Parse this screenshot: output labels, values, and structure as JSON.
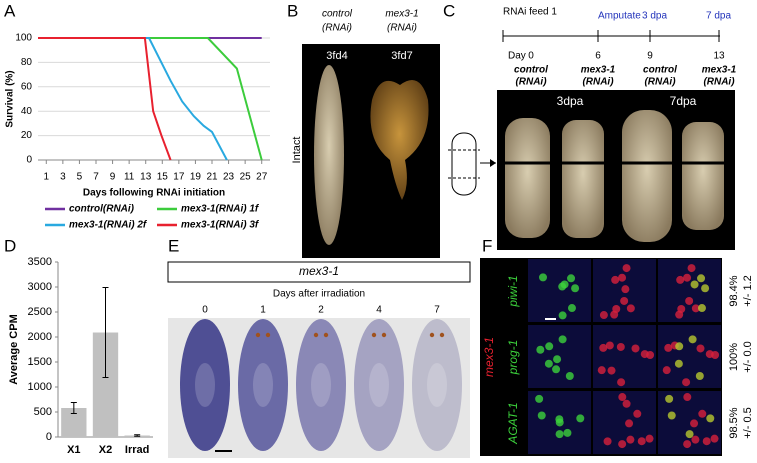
{
  "figure": {
    "panel_labels": [
      "A",
      "B",
      "C",
      "D",
      "E",
      "F"
    ],
    "B": {
      "columns": [
        {
          "condition": "control",
          "rnai": "(RNAi)",
          "stage": "3fd4"
        },
        {
          "condition": "mex3-1",
          "rnai": "(RNAi)",
          "stage": "3fd7"
        }
      ],
      "row_label": "Intact"
    },
    "C": {
      "day_prefix": "Day",
      "timeline": [
        {
          "event": "RNAi feed 1",
          "day": 0,
          "condition": "control",
          "rnai": "(RNAi)"
        },
        {
          "event": "Amputate",
          "day": 6,
          "condition": "mex3-1",
          "rnai": "(RNAi)"
        },
        {
          "event": "3 dpa",
          "day": 9,
          "condition": "control",
          "rnai": "(RNAi)"
        },
        {
          "event": "7 dpa",
          "day": 13,
          "condition": "mex3-1",
          "rnai": "(RNAi)"
        }
      ],
      "image_labels": [
        "3dpa",
        "7dpa"
      ]
    },
    "E": {
      "gene": "mex3-1",
      "axis_title": "Days after irradiation",
      "days": [
        0,
        1,
        2,
        4,
        7
      ]
    },
    "F": {
      "gene": "mex3-1",
      "rows": [
        {
          "marker": "piwi-1",
          "percent": "98.4%",
          "error": "+/- 1.2"
        },
        {
          "marker": "prog-1",
          "percent": "100%",
          "error": "+/- 0.0"
        },
        {
          "marker": "AGAT-1",
          "percent": "98.5%",
          "error": "+/- 0.5"
        }
      ]
    }
  },
  "chart_data": [
    {
      "type": "line",
      "ylabel": "Survival (%)",
      "xlabel": "Days following RNAi initiation",
      "xlim": [
        0,
        28
      ],
      "xticks": [
        1,
        3,
        5,
        7,
        9,
        11,
        13,
        15,
        17,
        19,
        21,
        23,
        25,
        27
      ],
      "ylim": [
        0,
        100
      ],
      "yticks": [
        0,
        20,
        40,
        60,
        80,
        100
      ],
      "grid": true,
      "series": [
        {
          "name": "control(RNAi)",
          "color": "#7030a0",
          "x": [
            0,
            27
          ],
          "values": [
            100,
            100
          ]
        },
        {
          "name": "mex3-1(RNAi) 1f",
          "color": "#3ccc3c",
          "x": [
            0,
            20.5,
            24,
            27
          ],
          "values": [
            100,
            100,
            75,
            0
          ]
        },
        {
          "name": "mex3-1(RNAi) 2f",
          "color": "#29a9e0",
          "x": [
            0,
            13.4,
            16,
            17.4,
            18.8,
            20,
            21,
            22.8
          ],
          "values": [
            100,
            100,
            65,
            48,
            36,
            28,
            23,
            0
          ]
        },
        {
          "name": "mex3-1(RNAi) 3f",
          "color": "#e8212f",
          "x": [
            0,
            12.9,
            13.9,
            14.9,
            16
          ],
          "values": [
            100,
            100,
            40,
            20,
            0
          ]
        }
      ]
    },
    {
      "type": "bar",
      "ylabel": "Average CPM",
      "categories": [
        "X1",
        "X2",
        "Irrad"
      ],
      "values": [
        580,
        2090,
        30
      ],
      "errors": [
        110,
        900,
        15
      ],
      "color": "#c0c0c0",
      "ylim": [
        0,
        3500
      ],
      "yticks": [
        0,
        500,
        1000,
        1500,
        2000,
        2500,
        3000,
        3500
      ]
    }
  ]
}
